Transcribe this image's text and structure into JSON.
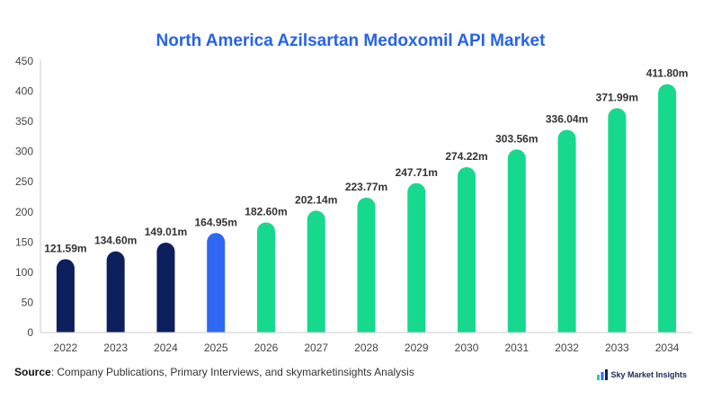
{
  "colors": {
    "historical": "#0d1f5c",
    "current": "#2f66f2",
    "forecast": "#16d98e",
    "title": "#2563eb",
    "axis": "#cccccc"
  },
  "chart_data": {
    "type": "bar",
    "title": "North America Azilsartan Medoxomil API Market",
    "xlabel": "",
    "ylabel": "",
    "ylim": [
      0,
      450
    ],
    "yticks": [
      0,
      50,
      100,
      150,
      200,
      250,
      300,
      350,
      400,
      450
    ],
    "grid": false,
    "categories": [
      "2022",
      "2023",
      "2024",
      "2025",
      "2026",
      "2027",
      "2028",
      "2029",
      "2030",
      "2031",
      "2032",
      "2033",
      "2034"
    ],
    "values": [
      121.59,
      134.6,
      149.01,
      164.95,
      182.6,
      202.14,
      223.77,
      247.71,
      274.22,
      303.56,
      336.04,
      371.99,
      411.8
    ],
    "data_labels": [
      "121.59m",
      "134.60m",
      "149.01m",
      "164.95m",
      "182.60m",
      "202.14m",
      "223.77m",
      "247.71m",
      "274.22m",
      "303.56m",
      "336.04m",
      "371.99m",
      "411.80m"
    ],
    "bar_colors": [
      "#0d1f5c",
      "#0d1f5c",
      "#0d1f5c",
      "#2f66f2",
      "#16d98e",
      "#16d98e",
      "#16d98e",
      "#16d98e",
      "#16d98e",
      "#16d98e",
      "#16d98e",
      "#16d98e",
      "#16d98e"
    ]
  },
  "footer": {
    "source_label": "Source",
    "source_text": ": Company Publications, Primary Interviews, and skymarketinsights Analysis",
    "brand": "Sky Market Insights",
    "brand_icon": "brand-logo-icon"
  }
}
